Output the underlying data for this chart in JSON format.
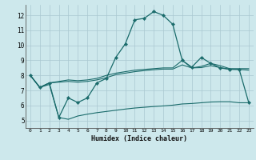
{
  "xlabel": "Humidex (Indice chaleur)",
  "bg_color": "#cde8ec",
  "grid_color": "#aac8d0",
  "line_color": "#1a6b6b",
  "xlim": [
    -0.5,
    23.5
  ],
  "ylim": [
    4.5,
    12.7
  ],
  "xticks": [
    0,
    1,
    2,
    3,
    4,
    5,
    6,
    7,
    8,
    9,
    10,
    11,
    12,
    13,
    14,
    15,
    16,
    17,
    18,
    19,
    20,
    21,
    22,
    23
  ],
  "yticks": [
    5,
    6,
    7,
    8,
    9,
    10,
    11,
    12
  ],
  "line1_x": [
    0,
    1,
    2,
    3,
    4,
    5,
    6,
    7,
    8,
    9,
    10,
    11,
    12,
    13,
    14,
    15,
    16,
    17,
    18,
    19,
    20,
    21,
    22,
    23
  ],
  "line1_y": [
    8.0,
    7.2,
    7.5,
    5.2,
    6.5,
    6.2,
    6.5,
    7.5,
    7.8,
    9.2,
    10.1,
    11.7,
    11.8,
    12.25,
    12.0,
    11.4,
    9.0,
    8.55,
    9.2,
    8.8,
    8.5,
    8.4,
    8.4,
    6.2
  ],
  "line2_x": [
    0,
    1,
    2,
    3,
    4,
    5,
    6,
    7,
    8,
    9,
    10,
    11,
    12,
    13,
    14,
    15,
    16,
    17,
    18,
    19,
    20,
    21,
    22,
    23
  ],
  "line2_y": [
    8.0,
    7.2,
    7.5,
    7.6,
    7.7,
    7.65,
    7.7,
    7.8,
    8.0,
    8.15,
    8.25,
    8.35,
    8.4,
    8.45,
    8.5,
    8.5,
    9.0,
    8.5,
    8.6,
    8.8,
    8.65,
    8.45,
    8.45,
    8.45
  ],
  "line3_x": [
    0,
    1,
    2,
    3,
    4,
    5,
    6,
    7,
    8,
    9,
    10,
    11,
    12,
    13,
    14,
    15,
    16,
    17,
    18,
    19,
    20,
    21,
    22,
    23
  ],
  "line3_y": [
    8.0,
    7.2,
    7.5,
    7.55,
    7.6,
    7.55,
    7.6,
    7.7,
    7.85,
    8.05,
    8.15,
    8.25,
    8.32,
    8.38,
    8.42,
    8.42,
    8.7,
    8.5,
    8.52,
    8.65,
    8.52,
    8.42,
    8.4,
    8.35
  ],
  "line4_x": [
    0,
    1,
    2,
    3,
    4,
    5,
    6,
    7,
    8,
    9,
    10,
    11,
    12,
    13,
    14,
    15,
    16,
    17,
    18,
    19,
    20,
    21,
    22,
    23
  ],
  "line4_y": [
    8.0,
    7.2,
    7.4,
    5.2,
    5.08,
    5.3,
    5.42,
    5.52,
    5.6,
    5.68,
    5.76,
    5.83,
    5.88,
    5.93,
    5.97,
    6.02,
    6.1,
    6.13,
    6.18,
    6.23,
    6.25,
    6.25,
    6.18,
    6.18
  ]
}
